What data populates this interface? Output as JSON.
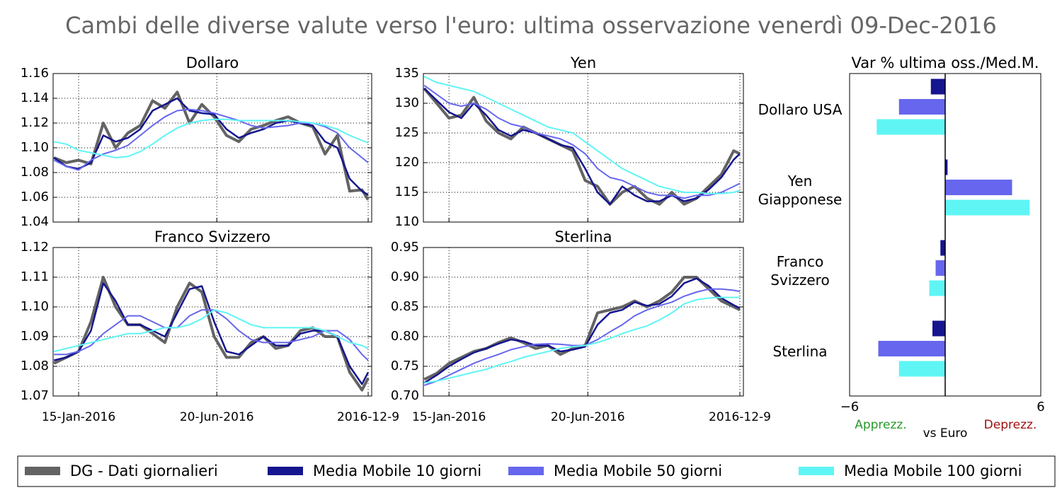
{
  "title": "Cambi delle diverse valute verso l'euro: ultima osservazione venerdì 09-Dec-2016",
  "chart_data": [
    {
      "type": "line",
      "title": "Dollaro",
      "grid": true,
      "x": [
        "2015-12-18",
        "2016-01-01",
        "2016-01-15",
        "2016-01-29",
        "2016-02-12",
        "2016-02-26",
        "2016-03-11",
        "2016-03-25",
        "2016-04-08",
        "2016-04-22",
        "2016-05-06",
        "2016-05-20",
        "2016-06-03",
        "2016-06-17",
        "2016-07-01",
        "2016-07-15",
        "2016-07-29",
        "2016-08-12",
        "2016-08-26",
        "2016-09-09",
        "2016-09-23",
        "2016-10-07",
        "2016-10-21",
        "2016-11-04",
        "2016-11-18",
        "2016-12-02",
        "2016-12-09"
      ],
      "xlim": [
        "2015-12-17",
        "2016-12-13"
      ],
      "xticks": [
        {
          "value": "2016-01-15",
          "label": "15-Jan-2016"
        },
        {
          "value": "2016-06-20",
          "label": "20-Jun-2016"
        },
        {
          "value": "2016-12-09",
          "label": "2016-12-9"
        }
      ],
      "ylim": [
        1.04,
        1.16
      ],
      "yticks": [
        1.04,
        1.06,
        1.08,
        {
          "value": 1.1,
          "label": "1.10"
        },
        1.12,
        1.14,
        1.16
      ],
      "series": [
        {
          "name": "DG - Dati giornalieri",
          "color": "#636363",
          "values": [
            1.092,
            1.088,
            1.09,
            1.087,
            1.12,
            1.1,
            1.112,
            1.118,
            1.138,
            1.132,
            1.145,
            1.12,
            1.135,
            1.125,
            1.11,
            1.105,
            1.115,
            1.118,
            1.122,
            1.125,
            1.12,
            1.117,
            1.095,
            1.11,
            1.065,
            1.066,
            1.058
          ]
        },
        {
          "name": "Media Mobile 10 giorni",
          "color": "#15158f",
          "values": [
            1.092,
            1.085,
            1.083,
            1.088,
            1.11,
            1.105,
            1.108,
            1.115,
            1.13,
            1.135,
            1.14,
            1.13,
            1.128,
            1.127,
            1.115,
            1.108,
            1.112,
            1.115,
            1.12,
            1.122,
            1.12,
            1.118,
            1.105,
            1.1,
            1.075,
            1.065,
            1.062
          ]
        },
        {
          "name": "Media Mobile 50 giorni",
          "color": "#6666ee",
          "values": [
            1.09,
            1.085,
            1.082,
            1.09,
            1.095,
            1.098,
            1.102,
            1.11,
            1.118,
            1.125,
            1.13,
            1.131,
            1.13,
            1.128,
            1.125,
            1.122,
            1.118,
            1.116,
            1.117,
            1.118,
            1.12,
            1.12,
            1.117,
            1.112,
            1.1,
            1.092,
            1.088
          ]
        },
        {
          "name": "Media Mobile 100 giorni",
          "color": "#5ff5f5",
          "values": [
            1.105,
            1.103,
            1.098,
            1.096,
            1.094,
            1.092,
            1.093,
            1.097,
            1.103,
            1.11,
            1.116,
            1.12,
            1.122,
            1.123,
            1.123,
            1.122,
            1.122,
            1.122,
            1.122,
            1.122,
            1.121,
            1.12,
            1.118,
            1.115,
            1.11,
            1.106,
            1.104
          ]
        }
      ]
    },
    {
      "type": "line",
      "title": "Yen",
      "grid": true,
      "x": [
        "2015-12-18",
        "2016-01-01",
        "2016-01-15",
        "2016-01-29",
        "2016-02-12",
        "2016-02-26",
        "2016-03-11",
        "2016-03-25",
        "2016-04-08",
        "2016-04-22",
        "2016-05-06",
        "2016-05-20",
        "2016-06-03",
        "2016-06-17",
        "2016-07-01",
        "2016-07-15",
        "2016-07-29",
        "2016-08-12",
        "2016-08-26",
        "2016-09-09",
        "2016-09-23",
        "2016-10-07",
        "2016-10-21",
        "2016-11-04",
        "2016-11-18",
        "2016-12-02",
        "2016-12-09"
      ],
      "xlim": [
        "2015-12-17",
        "2016-12-13"
      ],
      "xticks": [
        {
          "value": "2016-01-15",
          "label": "15-Jan-2016"
        },
        {
          "value": "2016-06-20",
          "label": "20-Jun-2016"
        },
        {
          "value": "2016-12-09",
          "label": "2016-12-9"
        }
      ],
      "ylim": [
        110,
        135
      ],
      "yticks": [
        110,
        115,
        120,
        125,
        130,
        135
      ],
      "series": [
        {
          "name": "DG - Dati giornalieri",
          "color": "#636363",
          "values": [
            132.5,
            130,
            127.5,
            128,
            131,
            127,
            125,
            124,
            126,
            125,
            124,
            123,
            122,
            117,
            116,
            113,
            115,
            116,
            114,
            113,
            115,
            113,
            114,
            116,
            118,
            122,
            121.5
          ]
        },
        {
          "name": "Media Mobile 10 giorni",
          "color": "#15158f",
          "values": [
            132.5,
            130.5,
            128.5,
            127.5,
            130,
            128,
            125.5,
            124.5,
            125.5,
            125,
            124,
            123,
            122.5,
            119,
            115,
            113,
            116,
            114.5,
            113.5,
            113.5,
            114.5,
            113.5,
            114,
            115.5,
            117.5,
            120.5,
            121.5
          ]
        },
        {
          "name": "Media Mobile 50 giorni",
          "color": "#6666ee",
          "values": [
            133,
            131.5,
            130,
            129.5,
            130,
            129,
            127.5,
            126.5,
            126,
            125,
            124.5,
            124,
            123,
            121.5,
            119,
            117.5,
            117,
            116,
            115,
            114.5,
            114.5,
            114,
            114.5,
            114.5,
            115,
            116,
            116.5
          ]
        },
        {
          "name": "Media Mobile 100 giorni",
          "color": "#5ff5f5",
          "values": [
            134.5,
            133.5,
            133,
            132.5,
            132,
            131,
            130,
            129,
            128,
            127,
            126,
            125.5,
            125,
            123.5,
            122,
            120.5,
            119,
            118,
            117,
            116,
            115.5,
            115,
            115,
            114.8,
            114.8,
            115,
            115.3
          ]
        }
      ]
    },
    {
      "type": "line",
      "title": "Franco Svizzero",
      "grid": true,
      "x": [
        "2015-12-18",
        "2016-01-01",
        "2016-01-15",
        "2016-01-29",
        "2016-02-12",
        "2016-02-26",
        "2016-03-11",
        "2016-03-25",
        "2016-04-08",
        "2016-04-22",
        "2016-05-06",
        "2016-05-20",
        "2016-06-03",
        "2016-06-17",
        "2016-07-01",
        "2016-07-15",
        "2016-07-29",
        "2016-08-12",
        "2016-08-26",
        "2016-09-09",
        "2016-09-23",
        "2016-10-07",
        "2016-10-21",
        "2016-11-04",
        "2016-11-18",
        "2016-12-02",
        "2016-12-09"
      ],
      "xlim": [
        "2015-12-17",
        "2016-12-13"
      ],
      "xticks": [
        {
          "value": "2016-01-15",
          "label": "15-Jan-2016"
        },
        {
          "value": "2016-06-20",
          "label": "20-Jun-2016"
        },
        {
          "value": "2016-12-09",
          "label": "2016-12-9"
        }
      ],
      "ylim": [
        1.07,
        1.12
      ],
      "yticks": [
        1.07,
        1.08,
        1.09,
        {
          "value": 1.1,
          "label": "1.10"
        },
        1.11,
        1.12
      ],
      "series": [
        {
          "name": "DG - Dati giornalieri",
          "color": "#636363",
          "values": [
            1.081,
            1.083,
            1.085,
            1.095,
            1.11,
            1.1,
            1.094,
            1.094,
            1.091,
            1.088,
            1.1,
            1.108,
            1.105,
            1.09,
            1.083,
            1.083,
            1.088,
            1.09,
            1.086,
            1.087,
            1.092,
            1.093,
            1.09,
            1.09,
            1.078,
            1.072,
            1.076
          ]
        },
        {
          "name": "Media Mobile 10 giorni",
          "color": "#15158f",
          "values": [
            1.082,
            1.083,
            1.085,
            1.092,
            1.108,
            1.102,
            1.094,
            1.094,
            1.092,
            1.09,
            1.098,
            1.106,
            1.107,
            1.095,
            1.085,
            1.084,
            1.087,
            1.09,
            1.087,
            1.087,
            1.091,
            1.092,
            1.092,
            1.09,
            1.08,
            1.074,
            1.078
          ]
        },
        {
          "name": "Media Mobile 50 giorni",
          "color": "#6666ee",
          "values": [
            1.084,
            1.084,
            1.085,
            1.087,
            1.091,
            1.094,
            1.097,
            1.097,
            1.095,
            1.093,
            1.093,
            1.097,
            1.099,
            1.099,
            1.096,
            1.092,
            1.089,
            1.088,
            1.088,
            1.088,
            1.089,
            1.09,
            1.092,
            1.092,
            1.089,
            1.084,
            1.082
          ]
        },
        {
          "name": "Media Mobile 100 giorni",
          "color": "#5ff5f5",
          "values": [
            1.085,
            1.086,
            1.087,
            1.088,
            1.089,
            1.09,
            1.091,
            1.091,
            1.092,
            1.093,
            1.093,
            1.094,
            1.096,
            1.099,
            1.098,
            1.096,
            1.094,
            1.093,
            1.093,
            1.093,
            1.093,
            1.093,
            1.092,
            1.09,
            1.088,
            1.087,
            1.086
          ]
        }
      ]
    },
    {
      "type": "line",
      "title": "Sterlina",
      "grid": true,
      "x": [
        "2015-12-18",
        "2016-01-01",
        "2016-01-15",
        "2016-01-29",
        "2016-02-12",
        "2016-02-26",
        "2016-03-11",
        "2016-03-25",
        "2016-04-08",
        "2016-04-22",
        "2016-05-06",
        "2016-05-20",
        "2016-06-03",
        "2016-06-17",
        "2016-07-01",
        "2016-07-15",
        "2016-07-29",
        "2016-08-12",
        "2016-08-26",
        "2016-09-09",
        "2016-09-23",
        "2016-10-07",
        "2016-10-21",
        "2016-11-04",
        "2016-11-18",
        "2016-12-02",
        "2016-12-09"
      ],
      "xlim": [
        "2015-12-17",
        "2016-12-13"
      ],
      "xticks": [
        {
          "value": "2016-01-15",
          "label": "15-Jan-2016"
        },
        {
          "value": "2016-06-20",
          "label": "20-Jun-2016"
        },
        {
          "value": "2016-12-09",
          "label": "2016-12-9"
        }
      ],
      "ylim": [
        0.7,
        0.95
      ],
      "yticks": [
        {
          "value": 0.7,
          "label": "0.70"
        },
        0.75,
        {
          "value": 0.8,
          "label": "0.80"
        },
        0.85,
        {
          "value": 0.9,
          "label": "0.90"
        },
        0.95
      ],
      "series": [
        {
          "name": "DG - Dati giornalieri",
          "color": "#636363",
          "values": [
            0.728,
            0.738,
            0.755,
            0.765,
            0.775,
            0.78,
            0.79,
            0.798,
            0.79,
            0.78,
            0.785,
            0.77,
            0.78,
            0.785,
            0.84,
            0.845,
            0.85,
            0.86,
            0.85,
            0.86,
            0.875,
            0.9,
            0.9,
            0.88,
            0.86,
            0.85,
            0.845
          ]
        },
        {
          "name": "Media Mobile 10 giorni",
          "color": "#15158f",
          "values": [
            0.722,
            0.735,
            0.75,
            0.762,
            0.773,
            0.78,
            0.788,
            0.795,
            0.792,
            0.785,
            0.785,
            0.775,
            0.778,
            0.783,
            0.82,
            0.84,
            0.845,
            0.858,
            0.852,
            0.855,
            0.868,
            0.89,
            0.898,
            0.885,
            0.865,
            0.853,
            0.848
          ]
        },
        {
          "name": "Media Mobile 50 giorni",
          "color": "#6666ee",
          "values": [
            0.718,
            0.725,
            0.735,
            0.745,
            0.755,
            0.763,
            0.77,
            0.778,
            0.783,
            0.787,
            0.788,
            0.787,
            0.785,
            0.785,
            0.795,
            0.808,
            0.82,
            0.835,
            0.845,
            0.852,
            0.858,
            0.868,
            0.875,
            0.88,
            0.88,
            0.878,
            0.876
          ]
        },
        {
          "name": "Media Mobile 100 giorni",
          "color": "#5ff5f5",
          "values": [
            0.722,
            0.725,
            0.73,
            0.735,
            0.74,
            0.745,
            0.752,
            0.758,
            0.765,
            0.77,
            0.775,
            0.78,
            0.783,
            0.785,
            0.79,
            0.797,
            0.805,
            0.812,
            0.818,
            0.828,
            0.84,
            0.855,
            0.862,
            0.865,
            0.866,
            0.866,
            0.866
          ]
        }
      ]
    },
    {
      "type": "bar",
      "orientation": "horizontal",
      "title": "Var % ultima oss./Med.M.",
      "categories": [
        "Dollaro USA",
        "Yen Giapponese",
        "Franco Svizzero",
        "Sterlina"
      ],
      "xlim": [
        -6,
        6
      ],
      "xticks": [
        {
          "value": -6,
          "label": "−6"
        },
        6
      ],
      "series": [
        {
          "name": "Media Mobile 10 giorni",
          "color": "#15158f",
          "values": [
            -0.9,
            0.15,
            -0.3,
            -0.8
          ]
        },
        {
          "name": "Media Mobile 50 giorni",
          "color": "#6666ee",
          "values": [
            -2.9,
            4.2,
            -0.6,
            -4.2
          ]
        },
        {
          "name": "Media Mobile 100 giorni",
          "color": "#5ff5f5",
          "values": [
            -4.3,
            5.3,
            -1.0,
            -2.9
          ]
        }
      ],
      "annotations": [
        {
          "text": "Apprezz.",
          "color": "#2a9a2a"
        },
        {
          "text": "vs Euro",
          "color": "#000000"
        },
        {
          "text": "Deprezz.",
          "color": "#a01010"
        }
      ]
    }
  ]
}
